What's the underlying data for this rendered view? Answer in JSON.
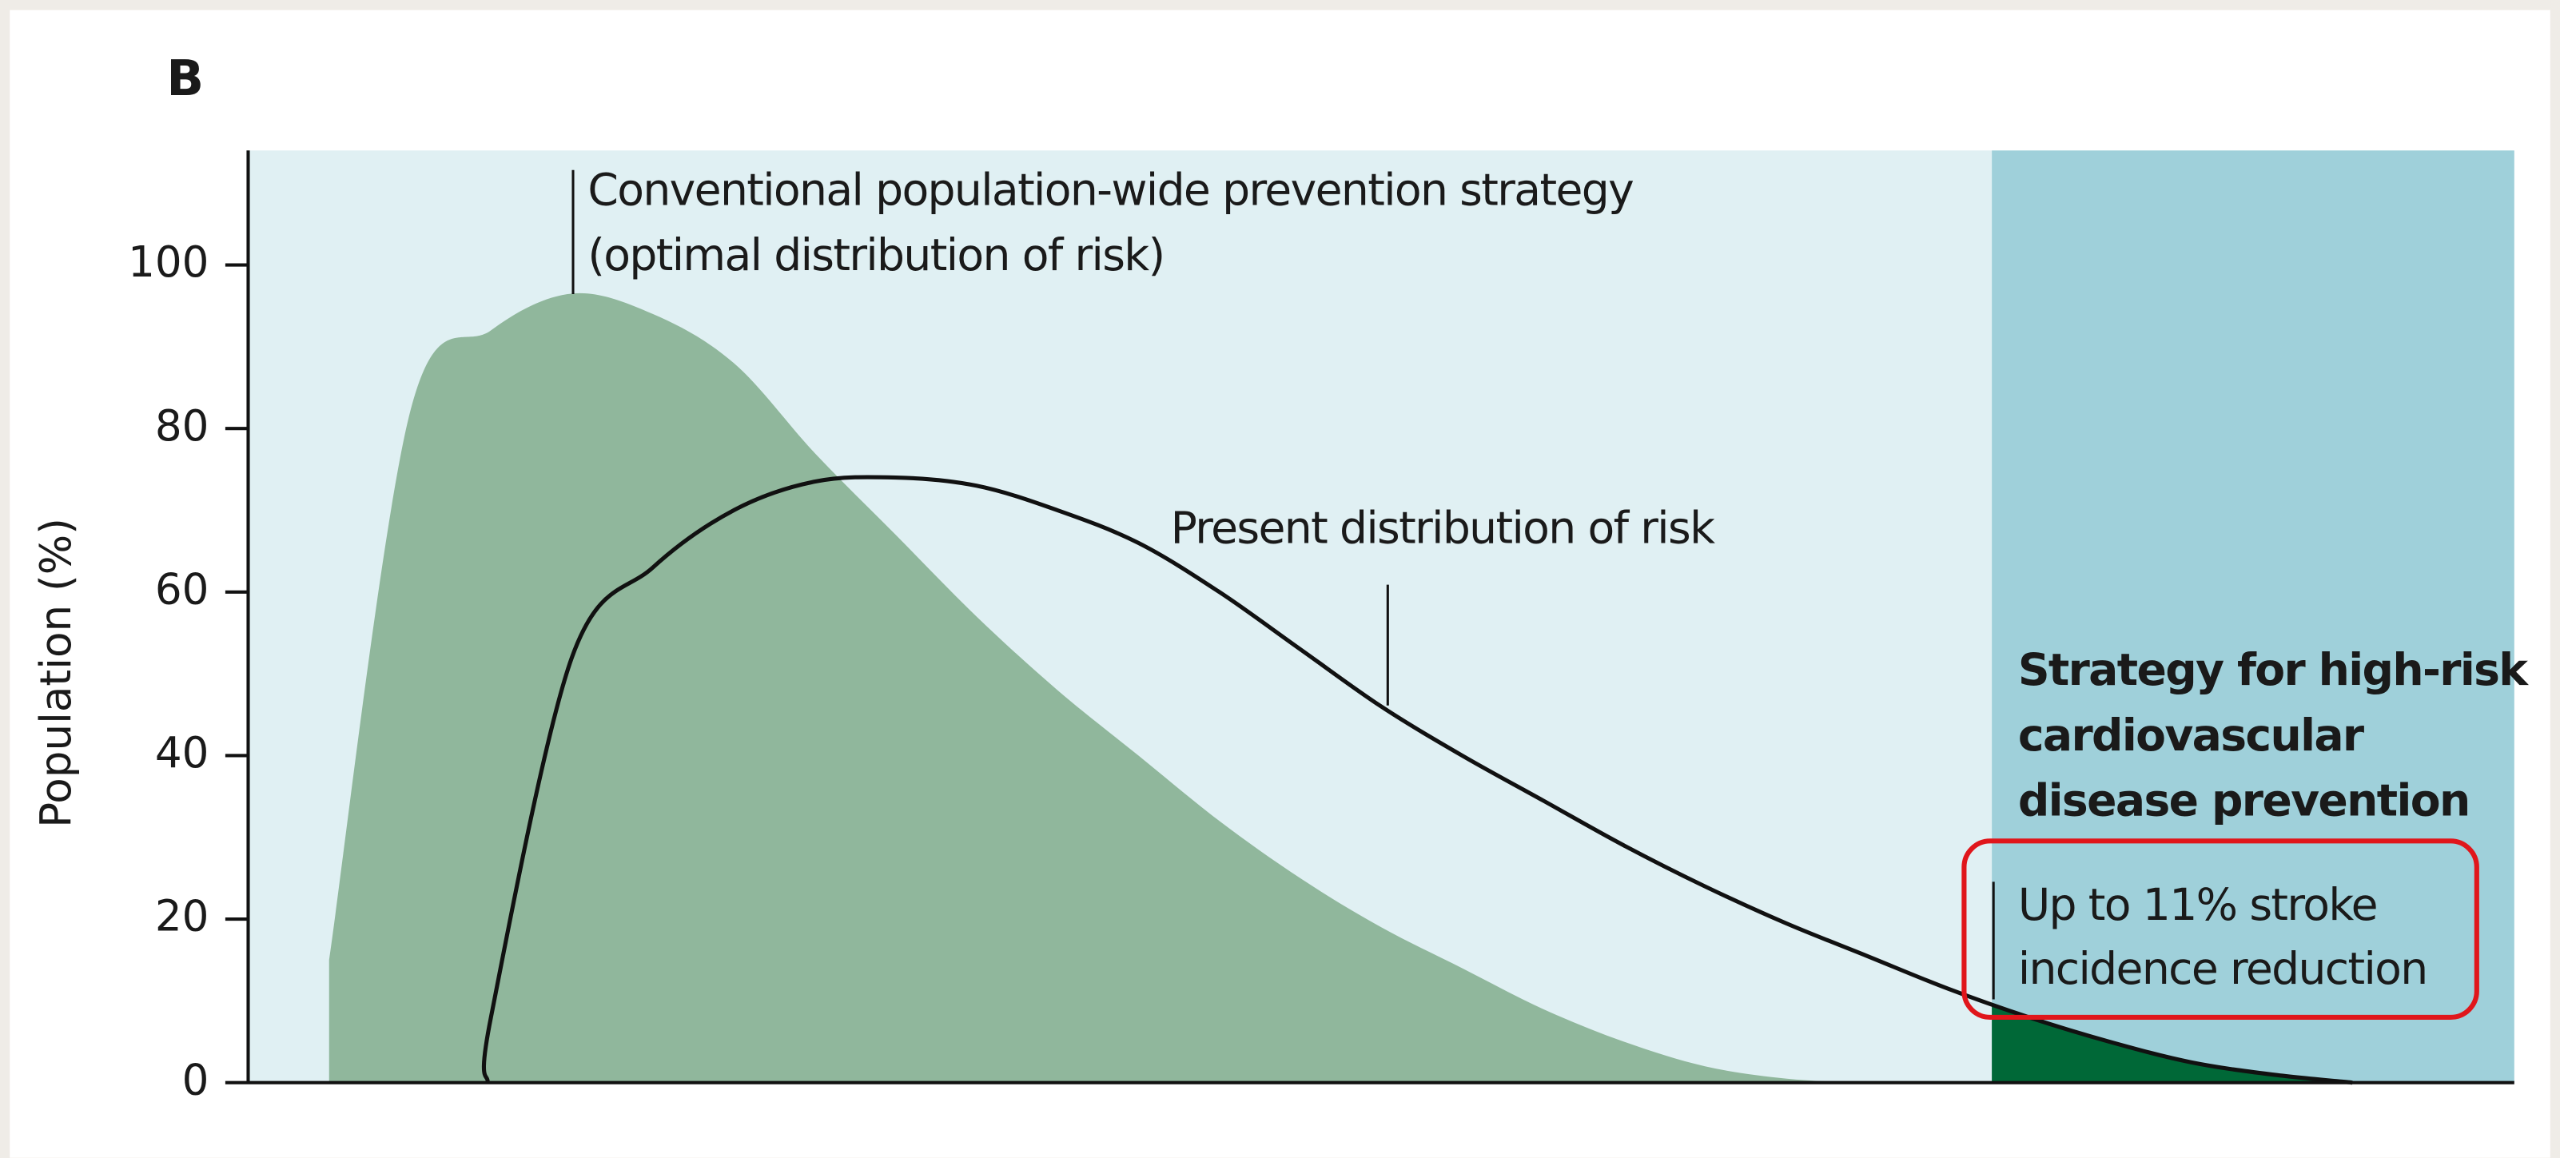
{
  "chart_data": {
    "type": "area",
    "title": "B",
    "y_label": "Population (%)",
    "categories": [
      null,
      null,
      null,
      null,
      null,
      null,
      null,
      null,
      null,
      null,
      null,
      null,
      null,
      null,
      null,
      null,
      null,
      null,
      null,
      null,
      null,
      null,
      null,
      null,
      null,
      null,
      null,
      null,
      null
    ],
    "series": [
      {
        "color": "#90b79c",
        "values": [
          null,
          15,
          82,
          92,
          96.5,
          94,
          88,
          77,
          67,
          57,
          48,
          40,
          32,
          25,
          19,
          14,
          9,
          5,
          2,
          0.5,
          0,
          0,
          0,
          0,
          0,
          0,
          0,
          0,
          0
        ]
      },
      {
        "color": "#111111",
        "highlight_color": "#006837",
        "values": [
          null,
          null,
          null,
          8,
          52,
          63,
          70,
          73.5,
          74,
          73,
          70,
          66,
          60,
          53,
          46,
          40,
          34.5,
          29,
          24,
          19.5,
          15.5,
          11.5,
          8,
          5,
          2.5,
          1,
          0,
          null,
          null
        ]
      }
    ],
    "ylim": [
      0,
      114
    ],
    "yticks": [
      0,
      20,
      40,
      60,
      80,
      100
    ],
    "annotations": [
      {
        "lines": [
          "Conventional population-wide prevention strategy",
          "(optimal distribution of risk)"
        ]
      },
      {
        "lines": [
          "Present distribution of risk"
        ]
      },
      {
        "lines": [
          "Strategy for high-risk",
          "cardiovascular",
          "disease prevention"
        ]
      },
      {
        "lines": [
          "Up to 11% stroke",
          "incidence reduction"
        ]
      }
    ]
  }
}
